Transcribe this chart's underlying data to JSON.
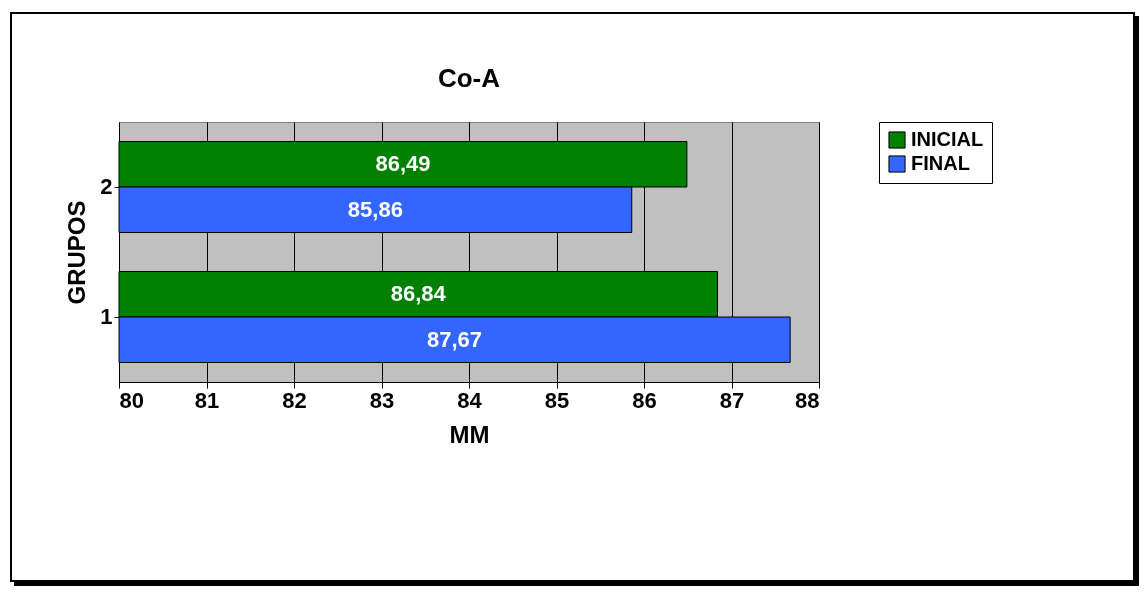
{
  "chart_data": {
    "type": "bar",
    "orientation": "horizontal",
    "title": "Co-A",
    "xlabel": "MM",
    "ylabel": "GRUPOS",
    "categories": [
      "2",
      "1"
    ],
    "series": [
      {
        "name": "INICIAL",
        "color": "#008000",
        "values": [
          86.49,
          86.84
        ],
        "value_labels": [
          "86,49",
          "86,84"
        ]
      },
      {
        "name": "FINAL",
        "color": "#3366ff",
        "values": [
          85.86,
          87.67
        ],
        "value_labels": [
          "85,86",
          "87,67"
        ]
      }
    ],
    "xlim": [
      80,
      88
    ],
    "xticks": [
      80,
      81,
      82,
      83,
      84,
      85,
      86,
      87,
      88
    ],
    "grid": "x",
    "legend": "right"
  }
}
